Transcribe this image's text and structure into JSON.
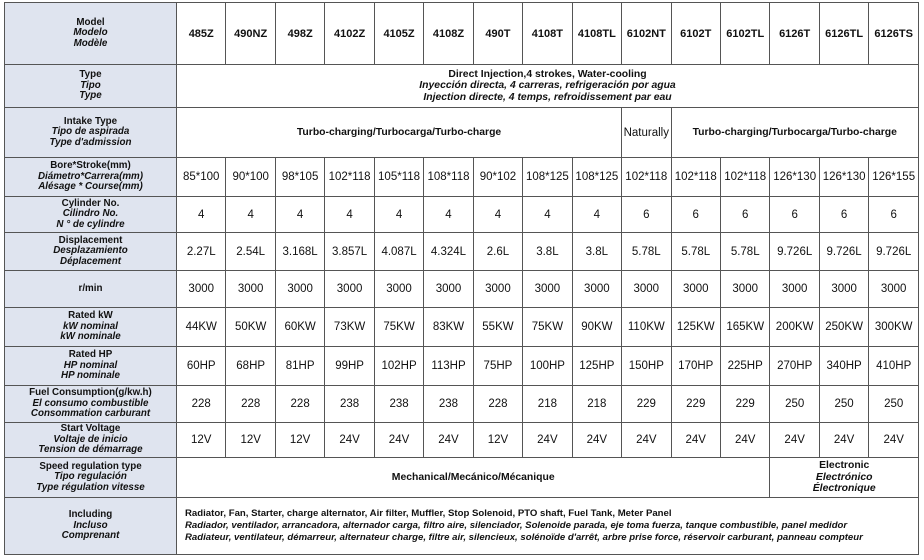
{
  "table": {
    "header_label": [
      "Model",
      "Modelo",
      "Modèle"
    ],
    "models": [
      "485Z",
      "490NZ",
      "498Z",
      "4102Z",
      "4105Z",
      "4108Z",
      "490T",
      "4108T",
      "4108TL",
      "6102NT",
      "6102T",
      "6102TL",
      "6126T",
      "6126TL",
      "6126TS"
    ],
    "rows": [
      {
        "label": [
          "Type",
          "Tipo",
          "Type"
        ],
        "cells": [
          [
            "Direct Injection,4 strokes, Water-cooling",
            "Inyección directa, 4 carreras, refrigeración por agua",
            "Injection directe, 4 temps, refroidissement par eau"
          ],
          null,
          null,
          null,
          null,
          null,
          null,
          null,
          null,
          null,
          null,
          null,
          null,
          null,
          null
        ]
      },
      {
        "label": [
          "Intake Type",
          "Tipo de aspirada",
          "Type d'admission"
        ],
        "cells": [
          "Turbo-charging/Turbocarga/Turbo-charge",
          null,
          null,
          null,
          null,
          null,
          null,
          null,
          null,
          "Naturally",
          "Turbo-charging/Turbocarga/Turbo-charge",
          null,
          null,
          null,
          null
        ]
      },
      {
        "label": [
          "Bore*Stroke(mm)",
          "Diámetro*Carrera(mm)",
          "Alésage * Course(mm)"
        ],
        "cells": [
          "85*100",
          "90*100",
          "98*105",
          "102*118",
          "105*118",
          "108*118",
          "90*102",
          "108*125",
          "108*125",
          "102*118",
          "102*118",
          "102*118",
          "126*130",
          "126*130",
          "126*155"
        ]
      },
      {
        "label": [
          "Cylinder No.",
          "Cilindro No.",
          "N ° de cylindre"
        ],
        "cells": [
          4,
          4,
          4,
          4,
          4,
          4,
          4,
          4,
          4,
          6,
          6,
          6,
          6,
          6,
          6
        ]
      },
      {
        "label": [
          "Displacement",
          "Desplazamiento",
          "Déplacement"
        ],
        "cells": [
          "2.27L",
          "2.54L",
          "3.168L",
          "3.857L",
          "4.087L",
          "4.324L",
          "2.6L",
          "3.8L",
          "3.8L",
          "5.78L",
          "5.78L",
          "5.78L",
          "9.726L",
          "9.726L",
          "9.726L"
        ]
      },
      {
        "label": [
          "r/min"
        ],
        "cells": [
          3000,
          3000,
          3000,
          3000,
          3000,
          3000,
          3000,
          3000,
          3000,
          3000,
          3000,
          3000,
          3000,
          3000,
          3000
        ]
      },
      {
        "label": [
          "Rated kW",
          "kW nominal",
          "kW nominale"
        ],
        "cells": [
          "44KW",
          "50KW",
          "60KW",
          "73KW",
          "75KW",
          "83KW",
          "55KW",
          "75KW",
          "90KW",
          "110KW",
          "125KW",
          "165KW",
          "200KW",
          "250KW",
          "300KW"
        ]
      },
      {
        "label": [
          "Rated HP",
          "HP nominal",
          "HP nominale"
        ],
        "cells": [
          "60HP",
          "68HP",
          "81HP",
          "99HP",
          "102HP",
          "113HP",
          "75HP",
          "100HP",
          "125HP",
          "150HP",
          "170HP",
          "225HP",
          "270HP",
          "340HP",
          "410HP"
        ]
      },
      {
        "label": [
          "Fuel Consumption(g/kw.h)",
          "El consumo combustible",
          "Consommation carburant"
        ],
        "cells": [
          228,
          228,
          228,
          238,
          238,
          238,
          228,
          218,
          218,
          229,
          229,
          229,
          250,
          250,
          250
        ]
      },
      {
        "label": [
          "Start Voltage",
          "Voltaje de inicio",
          "Tension de démarrage"
        ],
        "cells": [
          "12V",
          "12V",
          "12V",
          "24V",
          "24V",
          "24V",
          "12V",
          "24V",
          "24V",
          "24V",
          "24V",
          "24V",
          "24V",
          "24V",
          "24V"
        ]
      },
      {
        "label": [
          "Speed regulation type",
          "Tipo regulación",
          "Type régulation vitesse"
        ],
        "cells": [
          "Mechanical/Mecánico/Mécanique",
          null,
          null,
          null,
          null,
          null,
          null,
          null,
          null,
          null,
          null,
          null,
          [
            "Electronic",
            "Electrónico",
            "Électronique"
          ],
          null,
          null
        ]
      },
      {
        "label": [
          "Including",
          "Incluso",
          "Comprenant"
        ],
        "cells": [
          [
            "Radiator, Fan, Starter, charge alternator, Air filter, Muffler, Stop Solenoid, PTO shaft, Fuel Tank, Meter Panel",
            "Radiador, ventilador, arrancadora, alternador carga, filtro aire, silenciador, Solenoide parada, eje toma fuerza, tanque combustible, panel medidor",
            "Radiateur, ventilateur, démarreur, alternateur charge, filtre air, silencieux, solénoïde d'arrêt, arbre prise force, réservoir carburant, panneau compteur"
          ],
          null,
          null,
          null,
          null,
          null,
          null,
          null,
          null,
          null,
          null,
          null,
          null,
          null,
          null
        ]
      }
    ]
  }
}
